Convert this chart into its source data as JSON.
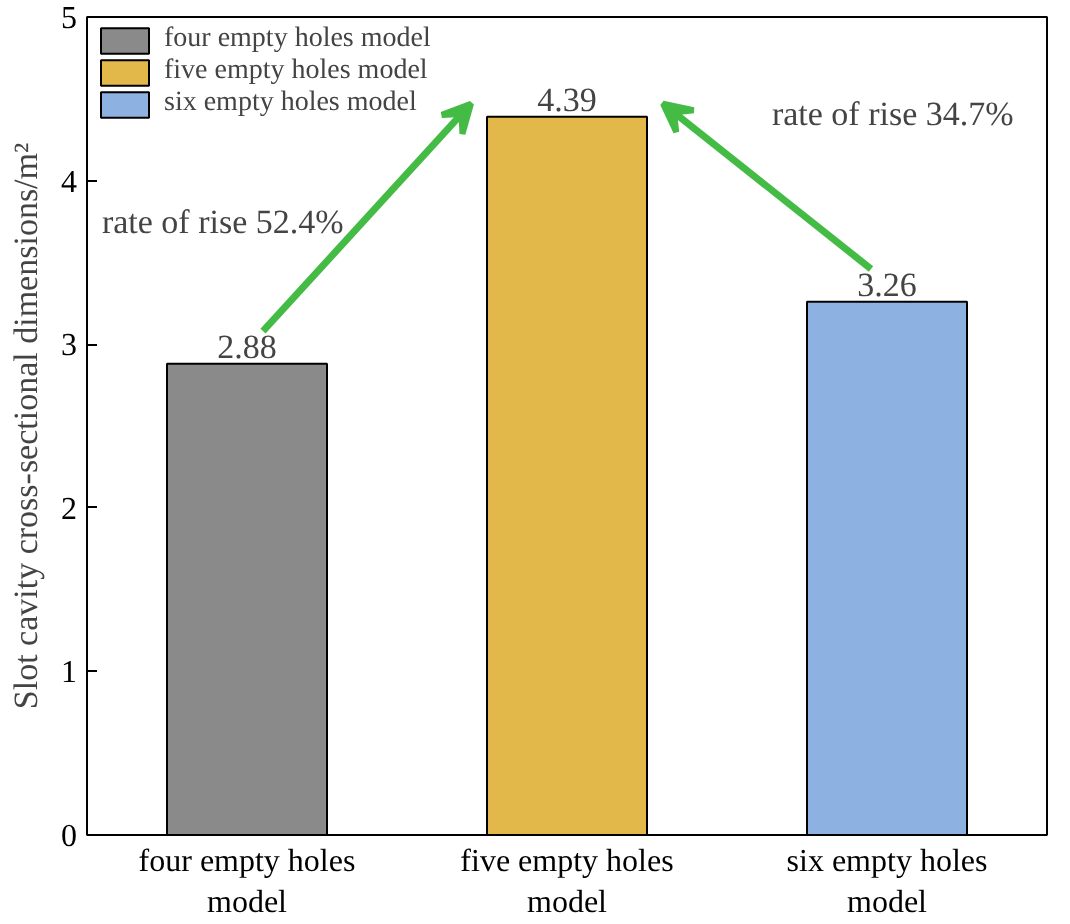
{
  "chart_data": {
    "type": "bar",
    "ylabel": "Slot cavity cross-sectional dimensions/m²",
    "categories": [
      "four empty holes model",
      "five empty holes model",
      "six empty holes model"
    ],
    "series": [
      {
        "name": "four empty holes model",
        "color": "#8a8a8a",
        "values": [
          2.88,
          null,
          null
        ]
      },
      {
        "name": "five empty holes model",
        "color": "#e3b84a",
        "values": [
          null,
          4.39,
          null
        ]
      },
      {
        "name": "six empty holes model",
        "color": "#8db2e2",
        "values": [
          null,
          null,
          3.26
        ]
      }
    ],
    "ylim": [
      0,
      5
    ],
    "yticks": [
      0,
      1,
      2,
      3,
      4,
      5
    ],
    "data_labels": true,
    "grid": false,
    "legend": "top left",
    "annotations": [
      "rate of rise  52.4%",
      "rate of rise  34.7%"
    ]
  }
}
